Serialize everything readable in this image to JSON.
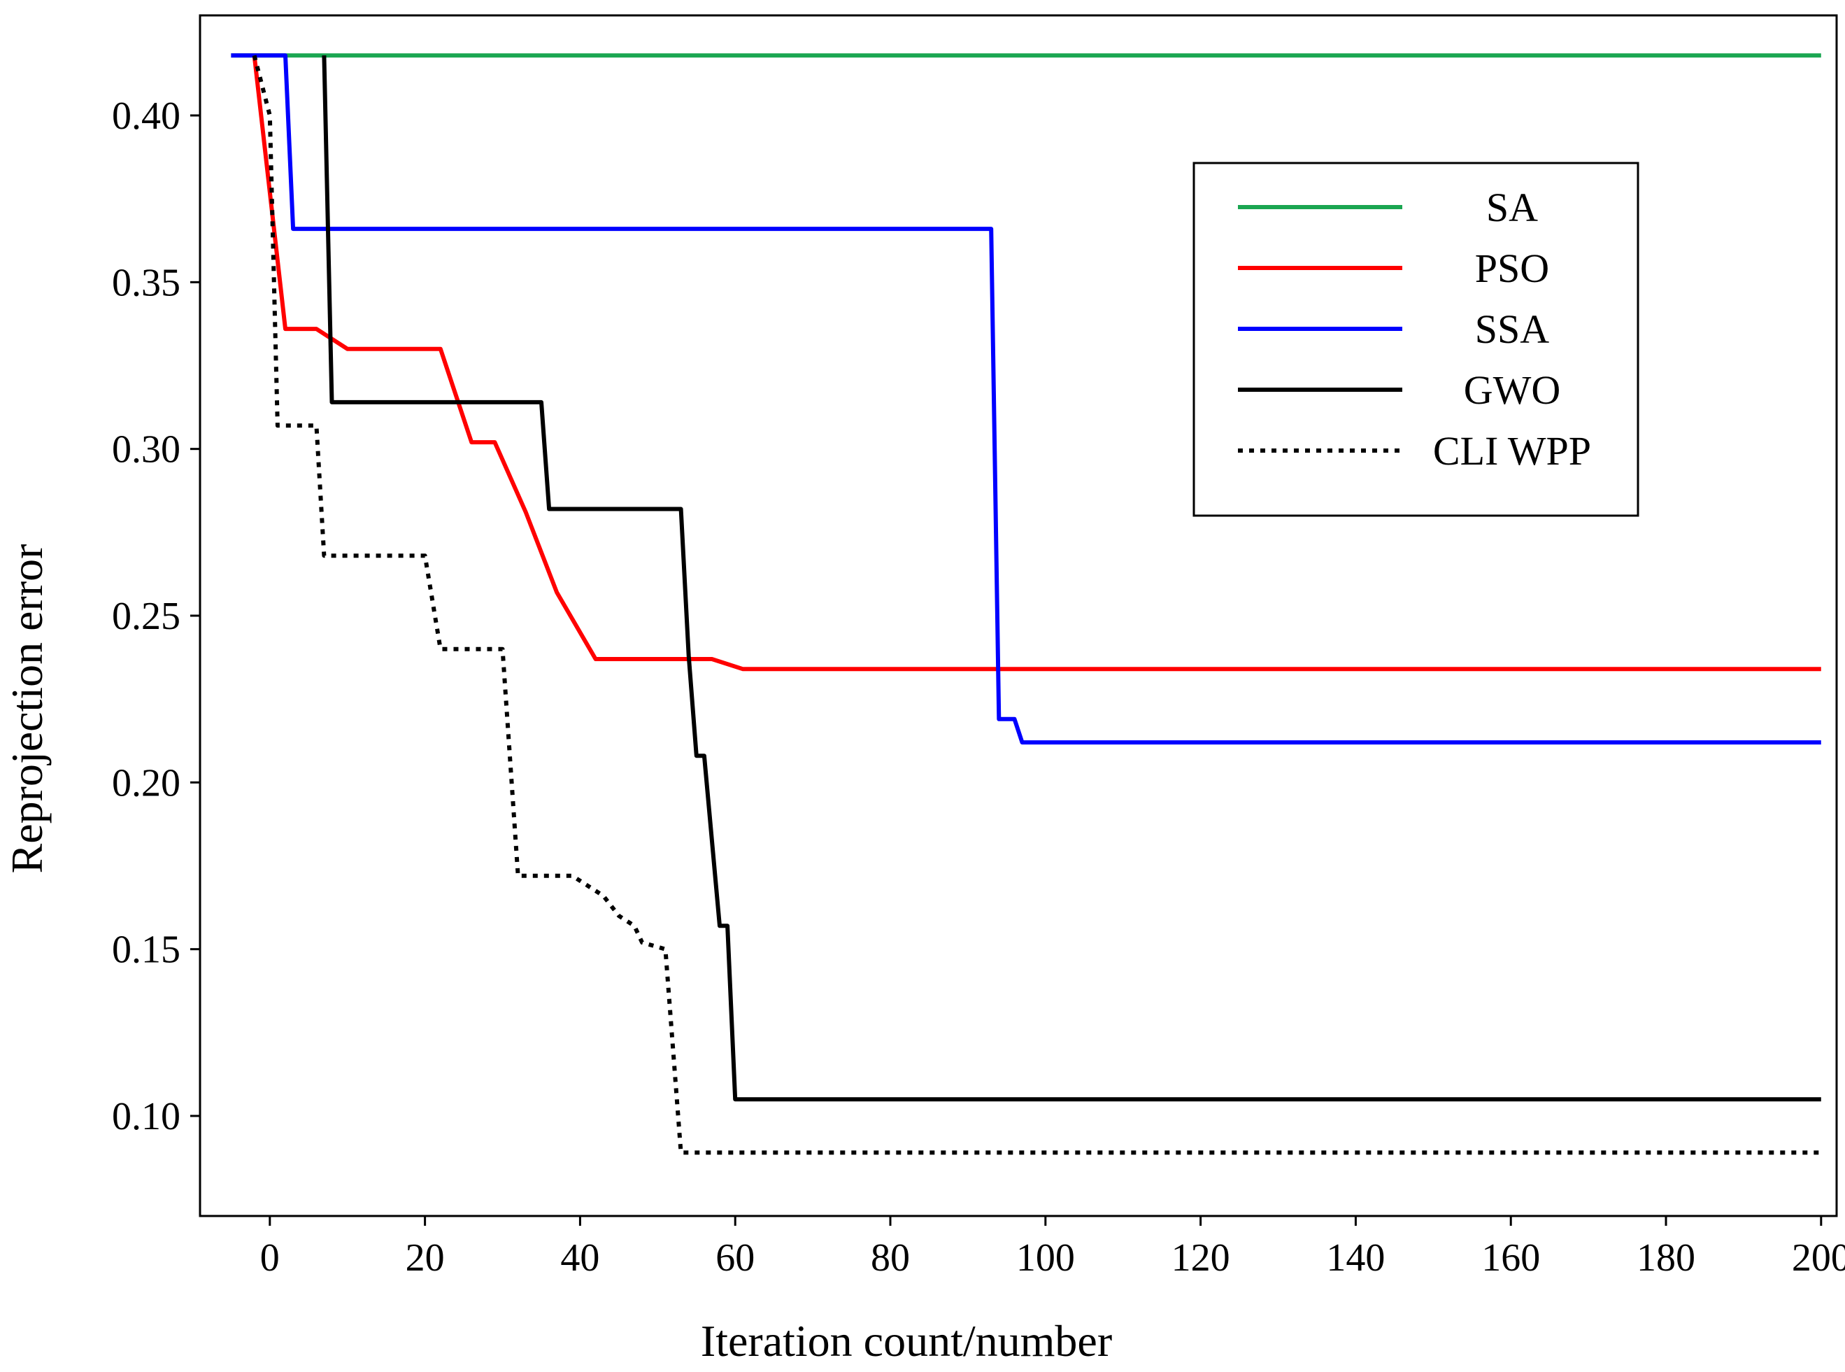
{
  "chart_data": {
    "type": "line",
    "title": "",
    "xlabel": "Iteration count/number",
    "ylabel": "Reprojection error",
    "xlim": [
      -9,
      202
    ],
    "ylim": [
      0.07,
      0.43
    ],
    "xticks": [
      0,
      20,
      40,
      60,
      80,
      100,
      120,
      140,
      160,
      180,
      200
    ],
    "xtick_labels": [
      "0",
      "20",
      "40",
      "60",
      "80",
      "100",
      "120",
      "140",
      "160",
      "180",
      "200"
    ],
    "yticks": [
      0.1,
      0.15,
      0.2,
      0.25,
      0.3,
      0.35,
      0.4
    ],
    "ytick_labels": [
      "0.10",
      "0.15",
      "0.20",
      "0.25",
      "0.30",
      "0.35",
      "0.40"
    ],
    "legend_position": "top-right",
    "series": [
      {
        "name": "SA",
        "color": "#1aa651",
        "dash": "solid",
        "points": [
          [
            -5,
            0.418
          ],
          [
            200,
            0.418
          ]
        ]
      },
      {
        "name": "PSO",
        "color": "#ff0000",
        "dash": "solid",
        "points": [
          [
            -2,
            0.418
          ],
          [
            2,
            0.336
          ],
          [
            6,
            0.336
          ],
          [
            10,
            0.33
          ],
          [
            22,
            0.33
          ],
          [
            26,
            0.302
          ],
          [
            29,
            0.302
          ],
          [
            33,
            0.281
          ],
          [
            37,
            0.257
          ],
          [
            42,
            0.237
          ],
          [
            57,
            0.237
          ],
          [
            61,
            0.234
          ],
          [
            200,
            0.234
          ]
        ]
      },
      {
        "name": "SSA",
        "color": "#0000ff",
        "dash": "solid",
        "points": [
          [
            -5,
            0.418
          ],
          [
            2,
            0.418
          ],
          [
            3,
            0.366
          ],
          [
            93,
            0.366
          ],
          [
            94,
            0.219
          ],
          [
            96,
            0.219
          ],
          [
            97,
            0.212
          ],
          [
            200,
            0.212
          ]
        ]
      },
      {
        "name": "GWO",
        "color": "#000000",
        "dash": "solid",
        "points": [
          [
            7,
            0.418
          ],
          [
            8,
            0.314
          ],
          [
            35,
            0.314
          ],
          [
            36,
            0.282
          ],
          [
            53,
            0.282
          ],
          [
            54,
            0.238
          ],
          [
            55,
            0.208
          ],
          [
            56,
            0.208
          ],
          [
            58,
            0.157
          ],
          [
            59,
            0.157
          ],
          [
            60,
            0.105
          ],
          [
            200,
            0.105
          ]
        ]
      },
      {
        "name": "CLI WPP",
        "color": "#000000",
        "dash": "dotted",
        "points": [
          [
            -2,
            0.418
          ],
          [
            0,
            0.4
          ],
          [
            1,
            0.307
          ],
          [
            6,
            0.307
          ],
          [
            7,
            0.268
          ],
          [
            20,
            0.268
          ],
          [
            22,
            0.24
          ],
          [
            30,
            0.24
          ],
          [
            32,
            0.172
          ],
          [
            39,
            0.172
          ],
          [
            43,
            0.166
          ],
          [
            45,
            0.16
          ],
          [
            47,
            0.157
          ],
          [
            48,
            0.152
          ],
          [
            51,
            0.15
          ],
          [
            53,
            0.089
          ],
          [
            200,
            0.089
          ]
        ]
      }
    ]
  }
}
